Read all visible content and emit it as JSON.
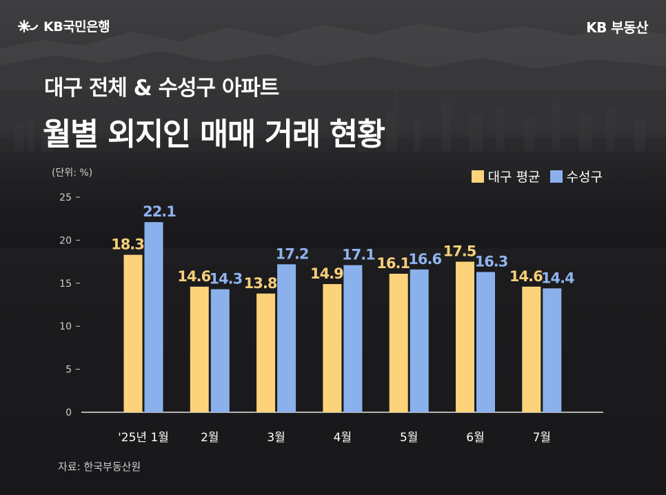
{
  "header": {
    "brand_left": "KB국민은행",
    "brand_right": "KB 부동산",
    "subtitle": "대구 전체 & 수성구 아파트",
    "title": "월별 외지인 매매 거래 현황"
  },
  "footer": {
    "source": "자료: 한국부동산원"
  },
  "colors": {
    "daegu": "#fcd37a",
    "suseong": "#8bb1ec",
    "daegu_label": "#f8cf79",
    "suseong_label": "#8fb3ee",
    "axis": "#cfcfcf",
    "background": "#18181b"
  },
  "chart_data": {
    "type": "bar",
    "unit_label": "(단위: %)",
    "categories": [
      "'25년 1월",
      "2월",
      "3월",
      "4월",
      "5월",
      "6월",
      "7월"
    ],
    "series": [
      {
        "name": "대구 평균",
        "values": [
          18.3,
          14.6,
          13.8,
          14.9,
          16.1,
          17.5,
          14.6
        ]
      },
      {
        "name": "수성구",
        "values": [
          22.1,
          14.3,
          17.2,
          17.1,
          16.6,
          16.3,
          14.4
        ]
      }
    ],
    "ylim": [
      0,
      25
    ],
    "yticks": [
      0,
      5,
      10,
      15,
      20,
      25
    ],
    "legend_position": "top-right",
    "grid": false,
    "data_labels": true
  }
}
